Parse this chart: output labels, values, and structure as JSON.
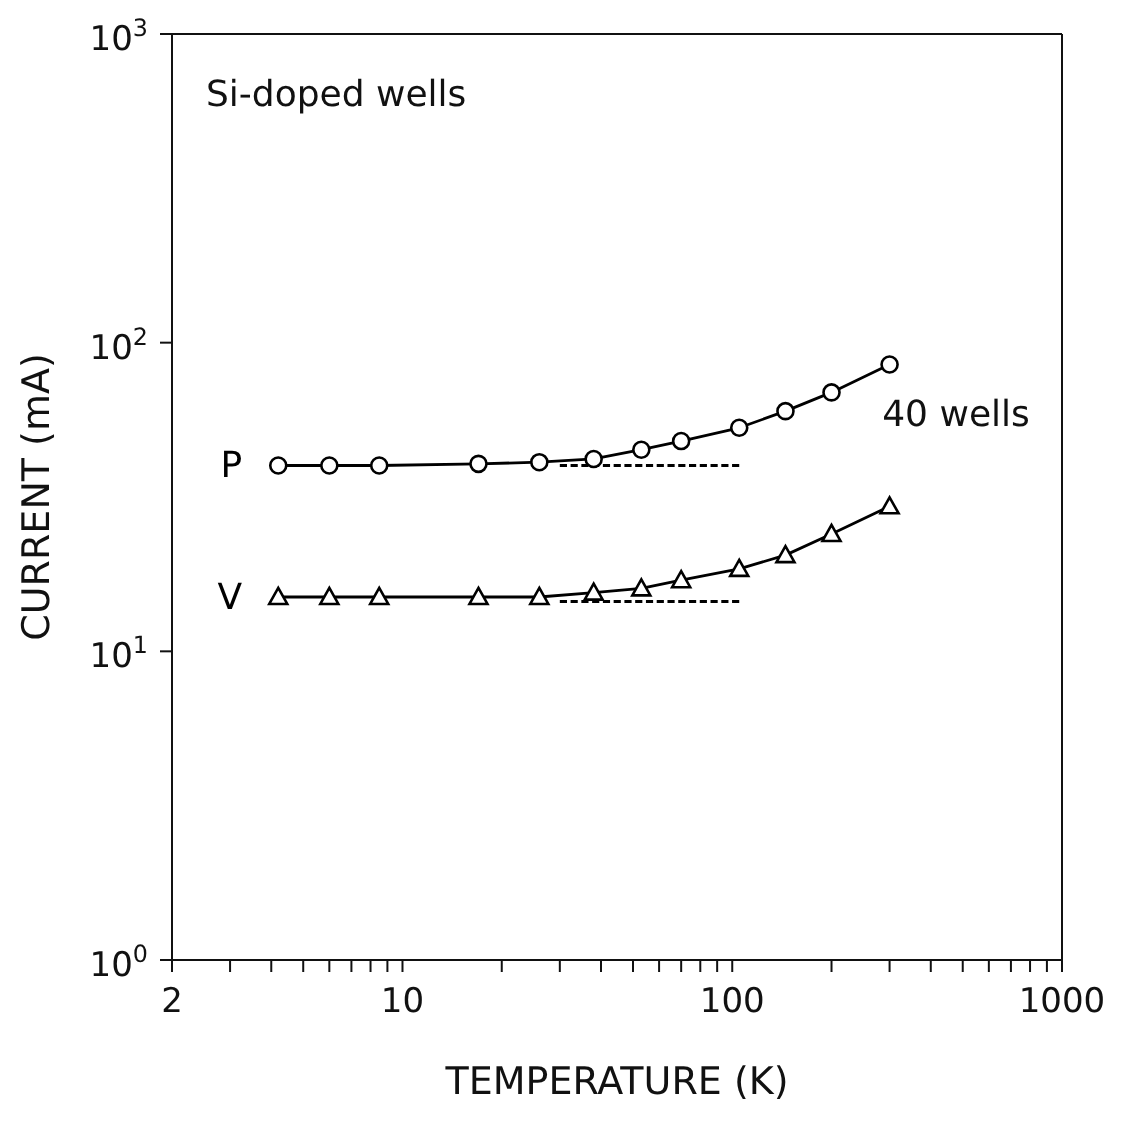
{
  "chart_data": {
    "type": "line",
    "xlabel": "TEMPERATURE (K)",
    "ylabel": "CURRENT (mA)",
    "log": "xy",
    "line_style": "solid",
    "xlim": [
      2,
      1000
    ],
    "xticks": [
      2,
      {
        "value": 3,
        "label": null
      },
      {
        "value": 4,
        "label": null
      },
      {
        "value": 5,
        "label": null
      },
      {
        "value": 6,
        "label": null
      },
      {
        "value": 7,
        "label": null
      },
      {
        "value": 8,
        "label": null
      },
      {
        "value": 9,
        "label": null
      },
      10,
      {
        "value": 20,
        "label": null
      },
      {
        "value": 30,
        "label": null
      },
      {
        "value": 40,
        "label": null
      },
      {
        "value": 50,
        "label": null
      },
      {
        "value": 60,
        "label": null
      },
      {
        "value": 70,
        "label": null
      },
      {
        "value": 80,
        "label": null
      },
      {
        "value": 90,
        "label": null
      },
      100,
      {
        "value": 200,
        "label": null
      },
      {
        "value": 300,
        "label": null
      },
      {
        "value": 400,
        "label": null
      },
      {
        "value": 500,
        "label": null
      },
      {
        "value": 600,
        "label": null
      },
      {
        "value": 700,
        "label": null
      },
      {
        "value": 800,
        "label": null
      },
      {
        "value": 900,
        "label": null
      },
      1000
    ],
    "ylim": [
      1,
      1000
    ],
    "yticks": [
      {
        "value": 1,
        "label": "10$^{0}$"
      },
      {
        "value": 10,
        "label": "10$^{1}$"
      },
      {
        "value": 100,
        "label": "10$^{2}$"
      },
      {
        "value": 1000,
        "label": "10$^{3}$"
      }
    ],
    "annotations": [
      "Si-doped wells",
      "40 wells"
    ],
    "series": [
      {
        "name": "P",
        "color": "#000000",
        "marker": "circle",
        "x": [
          4.2,
          6,
          8.5,
          17,
          26,
          38,
          53,
          70,
          105,
          145,
          200,
          300
        ],
        "values": [
          40,
          40,
          40,
          40.5,
          41,
          42,
          45,
          48,
          53,
          60,
          69,
          85
        ]
      },
      {
        "name": "V",
        "color": "#000000",
        "marker": "triangle",
        "x": [
          4.2,
          6,
          8.5,
          17,
          26,
          38,
          53,
          70,
          105,
          145,
          200,
          300
        ],
        "values": [
          15,
          15,
          15,
          15,
          15,
          15.5,
          16,
          17,
          18.5,
          20.5,
          24,
          29.5
        ]
      },
      {
        "color": "#000000",
        "marker": "none",
        "line_style": "dashed",
        "x": [
          30,
          105
        ],
        "values": [
          40,
          40
        ]
      },
      {
        "color": "#000000",
        "marker": "none",
        "line_style": "dashed",
        "x": [
          30,
          105
        ],
        "values": [
          14.5,
          14.5
        ]
      }
    ]
  }
}
